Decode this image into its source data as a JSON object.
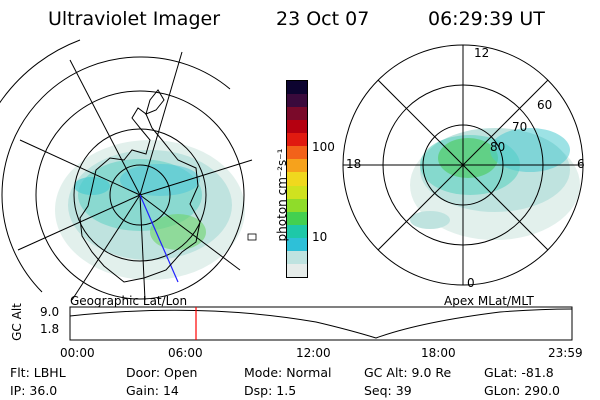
{
  "header": {
    "title": "Ultraviolet Imager",
    "date": "23 Oct 07",
    "time": "06:29:39 UT"
  },
  "left_panel": {
    "caption": "Geographic Lat/Lon"
  },
  "right_panel": {
    "caption": "Apex MLat/MLT",
    "mlt_labels": {
      "top": "12",
      "left": "18",
      "right": "6",
      "bottom": "0"
    },
    "lat_labels": [
      "80",
      "70",
      "60"
    ]
  },
  "colorbar": {
    "unit_label": "photon cm⁻²s⁻¹",
    "ticks": [
      "100",
      "10"
    ],
    "colors": [
      "#0d0430",
      "#3a0a3c",
      "#7a0a2a",
      "#b50010",
      "#e01a10",
      "#f2621a",
      "#f6a21c",
      "#f0d81e",
      "#cfe21f",
      "#8fdc2a",
      "#43d050",
      "#1ec8a8",
      "#2ec0d8",
      "#bfe3e0",
      "#e6ecea"
    ]
  },
  "altitude_plot": {
    "ylabel": "GC Alt",
    "yticks": [
      "9.0",
      "1.8"
    ],
    "xticks": [
      "00:00",
      "06:00",
      "12:00",
      "18:00",
      "23:59"
    ],
    "current_time_marker": "06:29",
    "marker_color": "#ff0000"
  },
  "status": {
    "row1": [
      {
        "label": "Flt:",
        "value": "LBHL"
      },
      {
        "label": "Door:",
        "value": "Open"
      },
      {
        "label": "Mode:",
        "value": "Normal"
      },
      {
        "label": "GC Alt:",
        "value": "9.0 Re"
      },
      {
        "label": "GLat:",
        "value": "-81.8"
      }
    ],
    "row2": [
      {
        "label": "IP:",
        "value": "36.0"
      },
      {
        "label": "Gain:",
        "value": "14"
      },
      {
        "label": "Dsp:",
        "value": "1.5"
      },
      {
        "label": "Seq:",
        "value": "39"
      },
      {
        "label": "GLon:",
        "value": "290.0"
      }
    ]
  }
}
